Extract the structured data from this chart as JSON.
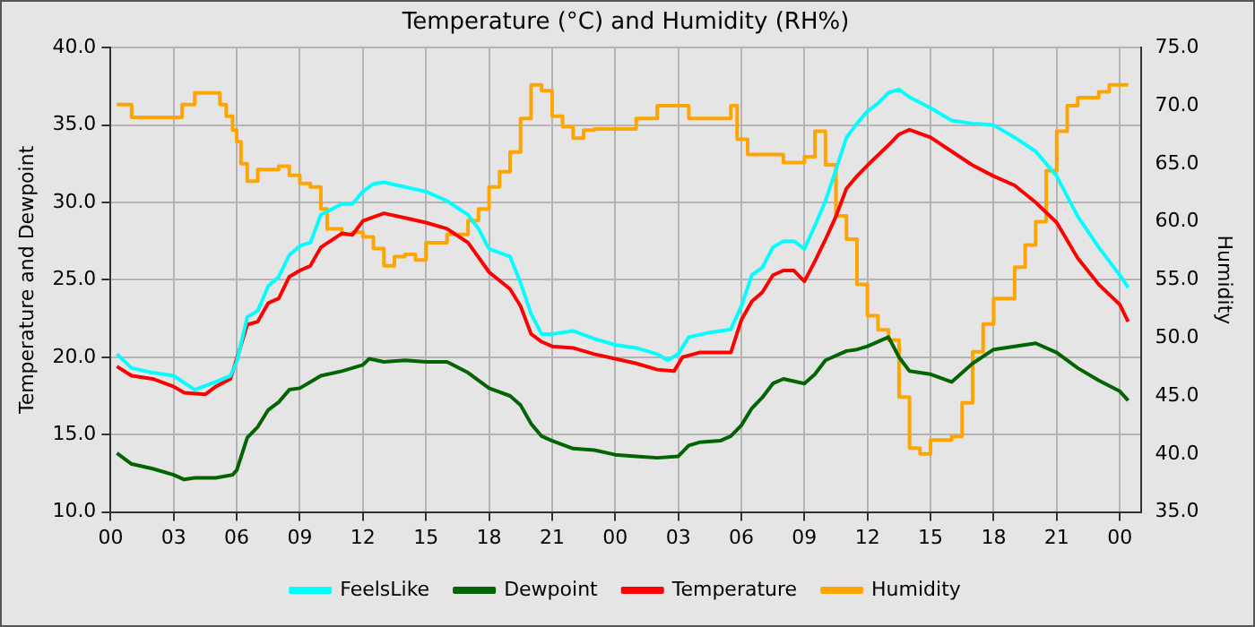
{
  "chart_data": {
    "type": "line",
    "title": "Temperature (°C) and Humidity (RH%)",
    "ylabel": "Temperature and Dewpoint",
    "y2label": "Humidity",
    "xlim": [
      0,
      49
    ],
    "xticks": [
      {
        "value": 0,
        "label": "00"
      },
      {
        "value": 3,
        "label": "03"
      },
      {
        "value": 6,
        "label": "06"
      },
      {
        "value": 9,
        "label": "09"
      },
      {
        "value": 12,
        "label": "12"
      },
      {
        "value": 15,
        "label": "15"
      },
      {
        "value": 18,
        "label": "18"
      },
      {
        "value": 21,
        "label": "21"
      },
      {
        "value": 24,
        "label": "00"
      },
      {
        "value": 27,
        "label": "03"
      },
      {
        "value": 30,
        "label": "06"
      },
      {
        "value": 33,
        "label": "09"
      },
      {
        "value": 36,
        "label": "12"
      },
      {
        "value": 39,
        "label": "15"
      },
      {
        "value": 42,
        "label": "18"
      },
      {
        "value": 45,
        "label": "21"
      },
      {
        "value": 48,
        "label": "00"
      }
    ],
    "ylim": [
      10,
      40
    ],
    "yticks": [
      {
        "value": 10,
        "label": "10.0"
      },
      {
        "value": 15,
        "label": "15.0"
      },
      {
        "value": 20,
        "label": "20.0"
      },
      {
        "value": 25,
        "label": "25.0"
      },
      {
        "value": 30,
        "label": "30.0"
      },
      {
        "value": 35,
        "label": "35.0"
      },
      {
        "value": 40,
        "label": "40.0"
      }
    ],
    "y2lim": [
      35,
      75
    ],
    "y2ticks": [
      {
        "value": 35,
        "label": "35.0"
      },
      {
        "value": 40,
        "label": "40.0"
      },
      {
        "value": 45,
        "label": "45.0"
      },
      {
        "value": 50,
        "label": "50.0"
      },
      {
        "value": 55,
        "label": "55.0"
      },
      {
        "value": 60,
        "label": "60.0"
      },
      {
        "value": 65,
        "label": "65.0"
      },
      {
        "value": 70,
        "label": "70.0"
      },
      {
        "value": 75,
        "label": "75.0"
      }
    ],
    "grid": true,
    "legend": "bottom",
    "marker": "none",
    "line_style": "solid",
    "series": [
      {
        "name": "FeelsLike",
        "color": "#00ffff",
        "x": [
          0.3,
          1,
          2,
          3,
          4,
          5,
          5.7,
          6,
          6.5,
          7,
          7.5,
          8,
          8.5,
          9,
          9.5,
          10,
          11,
          11.5,
          12,
          12.5,
          13,
          14,
          15,
          16,
          17,
          17.5,
          18,
          19,
          19.5,
          20,
          20.5,
          21,
          22,
          23,
          24,
          25,
          26,
          26.5,
          27,
          27.5,
          28.5,
          29.5,
          30,
          30.5,
          31,
          31.5,
          32,
          32.5,
          33,
          33.5,
          34,
          34.5,
          35,
          35.5,
          36,
          36.5,
          37,
          37.5,
          38,
          39,
          40,
          41,
          42,
          43,
          44,
          45,
          46,
          47,
          48,
          48.4
        ],
        "values": [
          20.2,
          19.3,
          19.0,
          18.8,
          17.9,
          18.4,
          18.8,
          19.7,
          22.6,
          23.0,
          24.6,
          25.2,
          26.6,
          27.2,
          27.4,
          29.2,
          29.9,
          29.9,
          30.7,
          31.2,
          31.3,
          31.0,
          30.7,
          30.1,
          29.2,
          28.3,
          27.0,
          26.5,
          24.8,
          22.8,
          21.5,
          21.5,
          21.7,
          21.2,
          20.8,
          20.6,
          20.2,
          19.8,
          20.2,
          21.3,
          21.6,
          21.8,
          23.3,
          25.3,
          25.8,
          27.1,
          27.5,
          27.5,
          27.0,
          28.5,
          30.1,
          32.1,
          34.2,
          35.1,
          35.9,
          36.4,
          37.1,
          37.3,
          36.8,
          36.1,
          35.3,
          35.1,
          35.0,
          34.2,
          33.3,
          31.7,
          29.1,
          27.1,
          25.3,
          24.5
        ]
      },
      {
        "name": "Dewpoint",
        "color": "#006400",
        "x": [
          0.3,
          1,
          2,
          3,
          3.5,
          4,
          5,
          5.8,
          6,
          6.5,
          7,
          7.5,
          8,
          8.5,
          9,
          9.5,
          10,
          11,
          12,
          12.3,
          13,
          14,
          15,
          16,
          17,
          18,
          19,
          19.5,
          20,
          20.5,
          21,
          22,
          23,
          24,
          25,
          26,
          27,
          27.5,
          28,
          29,
          29.5,
          30,
          30.5,
          31,
          31.5,
          32,
          33,
          33.5,
          34,
          35,
          35.5,
          36,
          37,
          37.5,
          38,
          39,
          40,
          41,
          42,
          43,
          44,
          45,
          46,
          47,
          48,
          48.4
        ],
        "values": [
          13.8,
          13.1,
          12.8,
          12.4,
          12.1,
          12.2,
          12.2,
          12.4,
          12.7,
          14.8,
          15.5,
          16.6,
          17.1,
          17.9,
          18.0,
          18.4,
          18.8,
          19.1,
          19.5,
          19.9,
          19.7,
          19.8,
          19.7,
          19.7,
          19.0,
          18.0,
          17.5,
          16.9,
          15.7,
          14.9,
          14.6,
          14.1,
          14.0,
          13.7,
          13.6,
          13.5,
          13.6,
          14.3,
          14.5,
          14.6,
          14.9,
          15.6,
          16.7,
          17.4,
          18.3,
          18.6,
          18.3,
          18.9,
          19.8,
          20.4,
          20.5,
          20.7,
          21.3,
          20.0,
          19.1,
          18.9,
          18.4,
          19.6,
          20.5,
          20.7,
          20.9,
          20.3,
          19.3,
          18.5,
          17.8,
          17.2
        ]
      },
      {
        "name": "Temperature",
        "color": "#ff0000",
        "x": [
          0.3,
          1,
          2,
          3,
          3.5,
          4.5,
          5,
          5.7,
          6,
          6.5,
          7,
          7.5,
          8,
          8.5,
          9,
          9.5,
          10,
          11,
          11.5,
          12,
          13,
          14,
          15,
          16,
          17,
          18,
          19,
          19.5,
          20,
          20.5,
          21,
          22,
          23,
          24,
          25,
          26,
          26.8,
          27.2,
          28,
          29,
          29.5,
          30,
          30.5,
          31,
          31.5,
          32,
          32.5,
          33,
          33.5,
          34,
          34.5,
          35,
          35.5,
          36,
          37,
          37.5,
          38,
          39,
          40,
          41,
          42,
          43,
          44,
          45,
          46,
          47,
          48,
          48.4
        ],
        "values": [
          19.4,
          18.8,
          18.6,
          18.1,
          17.7,
          17.6,
          18.1,
          18.6,
          19.9,
          22.1,
          22.3,
          23.5,
          23.8,
          25.2,
          25.6,
          25.9,
          27.1,
          28.0,
          27.9,
          28.8,
          29.3,
          29.0,
          28.7,
          28.3,
          27.4,
          25.5,
          24.4,
          23.3,
          21.5,
          21.0,
          20.7,
          20.6,
          20.2,
          19.9,
          19.6,
          19.2,
          19.1,
          20.0,
          20.3,
          20.3,
          20.3,
          22.4,
          23.6,
          24.2,
          25.3,
          25.6,
          25.6,
          24.9,
          26.2,
          27.6,
          29.1,
          30.9,
          31.7,
          32.4,
          33.7,
          34.4,
          34.7,
          34.2,
          33.3,
          32.4,
          31.7,
          31.1,
          30.0,
          28.7,
          26.4,
          24.7,
          23.4,
          22.3
        ]
      },
      {
        "name": "Humidity",
        "type": "step",
        "axis": "y2",
        "color": "#ffa500",
        "x": [
          0.3,
          1,
          3.4,
          4,
          5.2,
          5.5,
          5.8,
          6,
          6.2,
          6.5,
          7,
          8,
          8.5,
          9,
          9.5,
          10,
          10.3,
          11,
          11.5,
          12,
          12.5,
          13,
          13.5,
          14,
          14.5,
          15,
          16,
          17,
          17.5,
          18,
          18.5,
          19,
          19.5,
          20,
          20.5,
          21,
          21.5,
          22,
          22.5,
          23,
          24,
          25,
          26,
          27,
          27.5,
          29,
          29.5,
          29.8,
          30.3,
          31,
          32,
          33,
          33.5,
          34,
          34.5,
          35,
          35.5,
          36,
          36.5,
          37,
          37.5,
          38,
          38.5,
          39,
          40,
          40.5,
          41,
          41.5,
          42,
          43,
          43.5,
          44,
          44.5,
          45,
          45.5,
          46,
          47,
          47.5,
          48.4
        ],
        "values": [
          70.1,
          69.0,
          70.1,
          71.1,
          70.1,
          69.1,
          67.9,
          66.9,
          65.0,
          63.5,
          64.5,
          64.8,
          64.0,
          63.3,
          63.0,
          61.1,
          59.4,
          58.9,
          59.1,
          58.7,
          57.7,
          56.2,
          57.0,
          57.2,
          56.7,
          58.2,
          58.9,
          60.1,
          61.1,
          63.0,
          64.3,
          66.0,
          68.9,
          71.8,
          71.3,
          69.1,
          68.2,
          67.2,
          67.9,
          68.0,
          68.0,
          68.9,
          70.0,
          70.0,
          68.9,
          68.9,
          70.0,
          67.1,
          65.8,
          65.8,
          65.1,
          65.6,
          67.8,
          64.9,
          60.5,
          58.5,
          54.6,
          51.9,
          50.7,
          49.8,
          44.9,
          40.5,
          40.0,
          41.2,
          41.5,
          44.4,
          48.8,
          51.2,
          53.4,
          56.1,
          58.0,
          60.0,
          64.4,
          67.8,
          70.0,
          70.7,
          71.2,
          71.8,
          71.8
        ]
      }
    ]
  }
}
